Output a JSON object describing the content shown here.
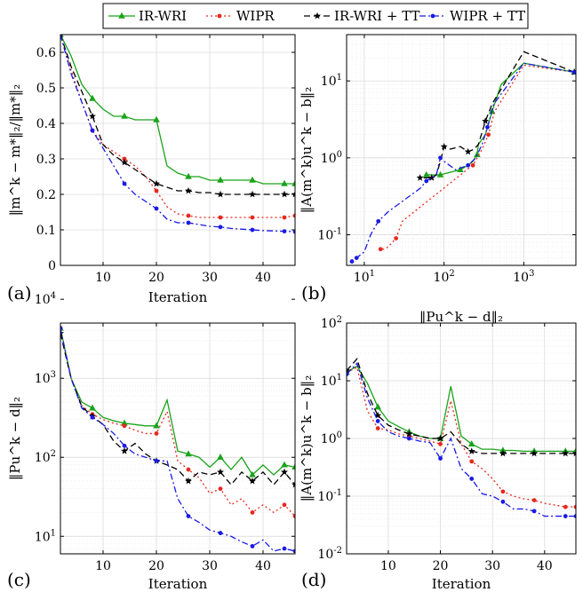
{
  "legend": {
    "entries": [
      {
        "label": "IR-WRI",
        "color": "#1aa31a",
        "dash": "",
        "marker": "triangle"
      },
      {
        "label": "WIPR",
        "color": "#e8281e",
        "dash": "2,3",
        "marker": "circle"
      },
      {
        "label": "IR-WRI + TT",
        "color": "#000000",
        "dash": "7,4",
        "marker": "star"
      },
      {
        "label": "WIPR + TT",
        "color": "#1a1ae6",
        "dash": "7,3,2,3",
        "marker": "circle"
      }
    ]
  },
  "chart_data": [
    {
      "id": "a",
      "panel_label": "(a)",
      "type": "line",
      "xscale": "linear",
      "yscale": "linear",
      "xlim": [
        2,
        46
      ],
      "ylim": [
        0,
        0.65
      ],
      "xticks": [
        10,
        20,
        30,
        40
      ],
      "xticklabels": [
        "10",
        "20",
        "30",
        "40"
      ],
      "yticks": [
        0,
        0.1,
        0.2,
        0.3,
        0.4,
        0.5,
        0.6
      ],
      "yticklabels": [
        "0",
        "0.1",
        "0.2",
        "0.3",
        "0.4",
        "0.5",
        "0.6"
      ],
      "xlabel": "Iteration",
      "ylabel": "‖m^k − m*‖₂/‖m*‖₂",
      "grid": true,
      "series": [
        {
          "name": "IR-WRI",
          "x": [
            2,
            4,
            6,
            8,
            10,
            12,
            14,
            16,
            18,
            20,
            22,
            24,
            26,
            28,
            30,
            32,
            34,
            36,
            38,
            40,
            42,
            44,
            46
          ],
          "y": [
            0.65,
            0.59,
            0.51,
            0.47,
            0.44,
            0.42,
            0.42,
            0.41,
            0.41,
            0.41,
            0.28,
            0.26,
            0.25,
            0.25,
            0.24,
            0.24,
            0.24,
            0.24,
            0.24,
            0.23,
            0.23,
            0.23,
            0.23
          ]
        },
        {
          "name": "WIPR",
          "x": [
            2,
            4,
            6,
            8,
            10,
            12,
            14,
            16,
            18,
            20,
            22,
            24,
            26,
            28,
            30,
            32,
            34,
            36,
            38,
            40,
            42,
            44,
            46
          ],
          "y": [
            0.65,
            0.55,
            0.46,
            0.38,
            0.34,
            0.32,
            0.3,
            0.28,
            0.25,
            0.21,
            0.165,
            0.145,
            0.14,
            0.135,
            0.135,
            0.135,
            0.135,
            0.135,
            0.135,
            0.135,
            0.135,
            0.135,
            0.14
          ]
        },
        {
          "name": "IR-WRI + TT",
          "x": [
            2,
            4,
            6,
            8,
            10,
            12,
            14,
            16,
            18,
            20,
            22,
            24,
            26,
            28,
            30,
            32,
            34,
            36,
            38,
            40,
            42,
            44,
            46
          ],
          "y": [
            0.65,
            0.56,
            0.49,
            0.42,
            0.34,
            0.31,
            0.29,
            0.27,
            0.25,
            0.23,
            0.22,
            0.21,
            0.21,
            0.205,
            0.205,
            0.2,
            0.2,
            0.2,
            0.2,
            0.2,
            0.2,
            0.2,
            0.2
          ]
        },
        {
          "name": "WIPR + TT",
          "x": [
            2,
            4,
            6,
            8,
            10,
            12,
            14,
            16,
            18,
            20,
            22,
            24,
            26,
            28,
            30,
            32,
            34,
            36,
            38,
            40,
            42,
            44,
            46
          ],
          "y": [
            0.65,
            0.54,
            0.46,
            0.38,
            0.33,
            0.28,
            0.23,
            0.2,
            0.18,
            0.16,
            0.13,
            0.12,
            0.12,
            0.115,
            0.11,
            0.108,
            0.104,
            0.102,
            0.1,
            0.098,
            0.097,
            0.096,
            0.095
          ]
        }
      ]
    },
    {
      "id": "b",
      "panel_label": "(b)",
      "type": "line",
      "xscale": "log",
      "yscale": "log",
      "xlim": [
        6,
        4500
      ],
      "ylim": [
        0.04,
        40
      ],
      "xticks": [
        10,
        100,
        1000
      ],
      "xticklabels": [
        "10^1",
        "10^2",
        "10^3"
      ],
      "yticks": [
        0.1,
        1,
        10
      ],
      "yticklabels": [
        "10^-1",
        "10^0",
        "10^1"
      ],
      "xlabel": "‖Pu^k − d‖₂",
      "ylabel": "‖A(m^k)u^k − b‖₂",
      "grid": true,
      "series": [
        {
          "name": "IR-WRI",
          "x": [
            4300,
            1000,
            520,
            400,
            330,
            270,
            260,
            230,
            200,
            160,
            120,
            100,
            90,
            80,
            70,
            60
          ],
          "y": [
            13,
            17,
            9,
            4,
            2,
            1.5,
            1.1,
            0.9,
            0.8,
            0.7,
            0.65,
            0.62,
            0.6,
            0.6,
            0.6,
            0.6
          ]
        },
        {
          "name": "WIPR",
          "x": [
            4300,
            1000,
            430,
            360,
            300,
            260,
            230,
            210,
            30,
            25,
            20,
            18,
            16
          ],
          "y": [
            13,
            16,
            4,
            2,
            1.3,
            1.0,
            0.8,
            0.75,
            0.15,
            0.09,
            0.07,
            0.065,
            0.065
          ]
        },
        {
          "name": "IR-WRI + TT",
          "x": [
            4300,
            1000,
            400,
            330,
            270,
            240,
            200,
            160,
            120,
            100,
            90,
            80,
            70,
            60,
            50
          ],
          "y": [
            13,
            24,
            5,
            3,
            1.5,
            1.3,
            1.2,
            1.4,
            1.3,
            1.4,
            0.9,
            0.6,
            0.55,
            0.55,
            0.55
          ]
        },
        {
          "name": "WIPR + TT",
          "x": [
            4300,
            1000,
            420,
            350,
            300,
            250,
            200,
            140,
            100,
            90,
            80,
            70,
            60,
            50,
            20,
            15,
            12,
            10,
            8,
            7
          ],
          "y": [
            13,
            17,
            5,
            2.5,
            1.5,
            1.0,
            0.8,
            0.7,
            0.9,
            1.0,
            0.6,
            0.55,
            0.5,
            0.4,
            0.2,
            0.15,
            0.1,
            0.06,
            0.05,
            0.045
          ]
        }
      ]
    },
    {
      "id": "c",
      "panel_label": "(c)",
      "type": "line",
      "xscale": "linear",
      "yscale": "log",
      "xlim": [
        2,
        46
      ],
      "ylim": [
        6,
        5000
      ],
      "xticks": [
        10,
        20,
        30,
        40
      ],
      "xticklabels": [
        "10",
        "20",
        "30",
        "40"
      ],
      "yticks": [
        10,
        100,
        1000,
        10000
      ],
      "yticklabels": [
        "10^1",
        "10^2",
        "10^3",
        "10^4"
      ],
      "xlabel": "Iteration",
      "ylabel": "‖Pu^k − d‖₂",
      "grid": true,
      "series": [
        {
          "name": "IR-WRI",
          "x": [
            2,
            4,
            6,
            8,
            10,
            12,
            14,
            16,
            18,
            20,
            22,
            24,
            26,
            28,
            30,
            32,
            34,
            36,
            38,
            40,
            42,
            44,
            46
          ],
          "y": [
            4300,
            1000,
            500,
            420,
            320,
            290,
            270,
            260,
            250,
            250,
            530,
            120,
            110,
            100,
            75,
            100,
            70,
            100,
            60,
            80,
            60,
            80,
            75
          ]
        },
        {
          "name": "WIPR",
          "x": [
            2,
            4,
            6,
            8,
            10,
            12,
            14,
            16,
            18,
            20,
            22,
            24,
            26,
            28,
            30,
            32,
            34,
            36,
            38,
            40,
            42,
            44,
            46
          ],
          "y": [
            4300,
            1000,
            450,
            350,
            300,
            270,
            250,
            220,
            200,
            200,
            380,
            90,
            70,
            55,
            35,
            40,
            25,
            30,
            20,
            25,
            20,
            25,
            18
          ]
        },
        {
          "name": "IR-WRI + TT",
          "x": [
            2,
            4,
            6,
            8,
            10,
            12,
            14,
            16,
            18,
            20,
            22,
            24,
            26,
            28,
            30,
            32,
            34,
            36,
            38,
            40,
            42,
            44,
            46
          ],
          "y": [
            3700,
            1000,
            440,
            330,
            260,
            160,
            120,
            150,
            110,
            90,
            80,
            70,
            50,
            65,
            60,
            65,
            45,
            65,
            50,
            65,
            45,
            65,
            45
          ]
        },
        {
          "name": "WIPR + TT",
          "x": [
            2,
            4,
            6,
            8,
            10,
            12,
            14,
            16,
            18,
            20,
            22,
            24,
            26,
            28,
            30,
            32,
            34,
            36,
            38,
            40,
            42,
            44,
            46
          ],
          "y": [
            4300,
            1000,
            420,
            320,
            260,
            200,
            140,
            110,
            100,
            90,
            90,
            30,
            18,
            15,
            12,
            11,
            10,
            8.5,
            7.5,
            9,
            6.5,
            7,
            6.5
          ]
        }
      ]
    },
    {
      "id": "d",
      "panel_label": "(d)",
      "type": "line",
      "xscale": "linear",
      "yscale": "log",
      "xlim": [
        2,
        46
      ],
      "ylim": [
        0.01,
        100
      ],
      "xticks": [
        10,
        20,
        30,
        40
      ],
      "xticklabels": [
        "10",
        "20",
        "30",
        "40"
      ],
      "yticks": [
        0.01,
        0.1,
        1,
        10,
        100
      ],
      "yticklabels": [
        "10^-2",
        "10^-1",
        "10^0",
        "10^1",
        "10^2"
      ],
      "xlabel": "Iteration",
      "ylabel": "‖A(m^k)u^k − b‖₂",
      "grid": true,
      "series": [
        {
          "name": "IR-WRI",
          "x": [
            2,
            4,
            6,
            8,
            10,
            12,
            14,
            16,
            18,
            20,
            22,
            24,
            26,
            28,
            30,
            32,
            34,
            36,
            38,
            40,
            42,
            44,
            46
          ],
          "y": [
            14,
            18,
            9,
            3.5,
            2,
            1.6,
            1.3,
            1.1,
            1.0,
            1.0,
            8,
            1.1,
            0.8,
            0.65,
            0.65,
            0.62,
            0.62,
            0.6,
            0.6,
            0.6,
            0.6,
            0.6,
            0.6
          ]
        },
        {
          "name": "WIPR",
          "x": [
            2,
            4,
            6,
            8,
            10,
            12,
            14,
            16,
            18,
            20,
            22,
            24,
            26,
            28,
            30,
            32,
            34,
            36,
            38,
            40,
            42,
            44,
            46
          ],
          "y": [
            14,
            17,
            3,
            1.5,
            1.4,
            1.2,
            1.1,
            1.0,
            0.9,
            0.8,
            4.5,
            0.8,
            0.4,
            0.3,
            0.2,
            0.12,
            0.1,
            0.09,
            0.085,
            0.075,
            0.07,
            0.065,
            0.065
          ]
        },
        {
          "name": "IR-WRI + TT",
          "x": [
            2,
            4,
            6,
            8,
            10,
            12,
            14,
            16,
            18,
            20,
            22,
            24,
            26,
            28,
            30,
            32,
            34,
            36,
            38,
            40,
            42,
            44,
            46
          ],
          "y": [
            15,
            24,
            6,
            2.5,
            1.7,
            1.4,
            1.2,
            1.1,
            1.0,
            1.0,
            1.3,
            0.8,
            0.6,
            0.55,
            0.55,
            0.55,
            0.55,
            0.55,
            0.55,
            0.55,
            0.55,
            0.55,
            0.55
          ]
        },
        {
          "name": "WIPR + TT",
          "x": [
            2,
            4,
            6,
            8,
            10,
            12,
            14,
            16,
            18,
            20,
            22,
            24,
            26,
            28,
            30,
            32,
            34,
            36,
            38,
            40,
            42,
            44,
            46
          ],
          "y": [
            13,
            20,
            5,
            2,
            1.3,
            1.1,
            1.0,
            0.9,
            0.85,
            0.45,
            1.0,
            0.3,
            0.2,
            0.11,
            0.1,
            0.08,
            0.06,
            0.06,
            0.055,
            0.045,
            0.045,
            0.045,
            0.045
          ]
        }
      ]
    }
  ]
}
